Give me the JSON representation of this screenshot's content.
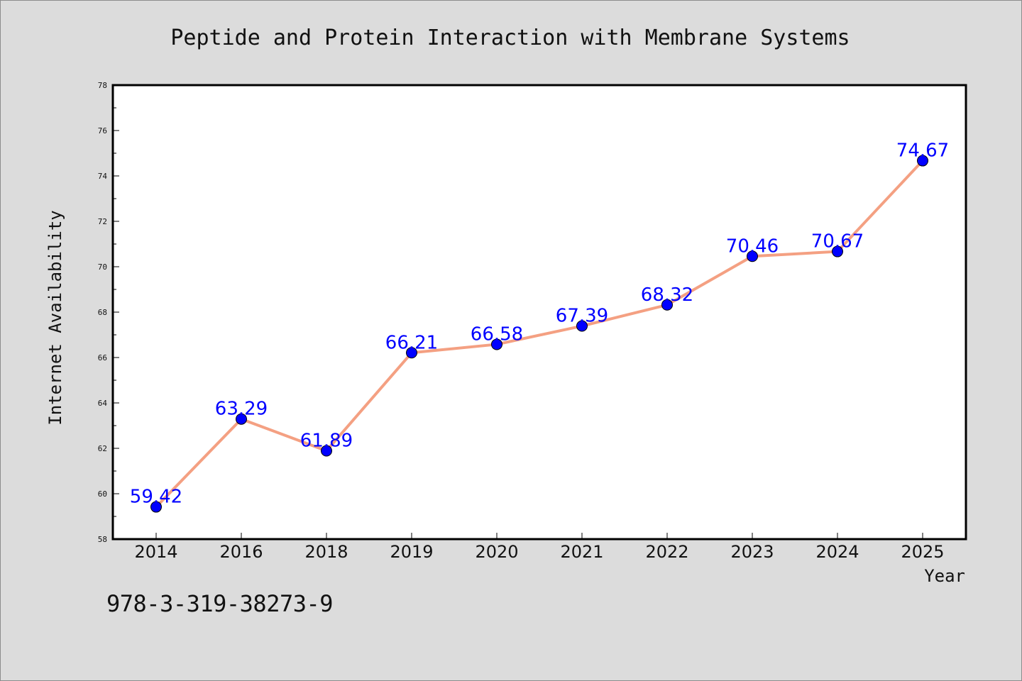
{
  "chart_data": {
    "type": "line",
    "title": "Peptide and Protein Interaction with Membrane Systems",
    "xlabel": "Year",
    "ylabel": "Internet Availability",
    "categories": [
      "2014",
      "2016",
      "2018",
      "2019",
      "2020",
      "2021",
      "2022",
      "2023",
      "2024",
      "2025"
    ],
    "series": [
      {
        "values": [
          59.42,
          63.29,
          61.89,
          66.21,
          66.58,
          67.39,
          68.32,
          70.46,
          70.67,
          74.67
        ],
        "labels": [
          "59.42",
          "63.29",
          "61.89",
          "66.21",
          "66.58",
          "67.39",
          "68.32",
          "70.46",
          "70.67",
          "74.67"
        ]
      }
    ],
    "ylim": [
      58,
      78
    ],
    "yticks": [
      "58",
      "60",
      "62",
      "64",
      "66",
      "68",
      "70",
      "72",
      "74",
      "76",
      "78"
    ],
    "grid": false,
    "colors": {
      "line": "#f4a082",
      "marker": "#0000ff",
      "label": "#0000ff",
      "background": "#dcdcdc",
      "plot": "#ffffff"
    }
  },
  "caption": "978-3-319-38273-9"
}
